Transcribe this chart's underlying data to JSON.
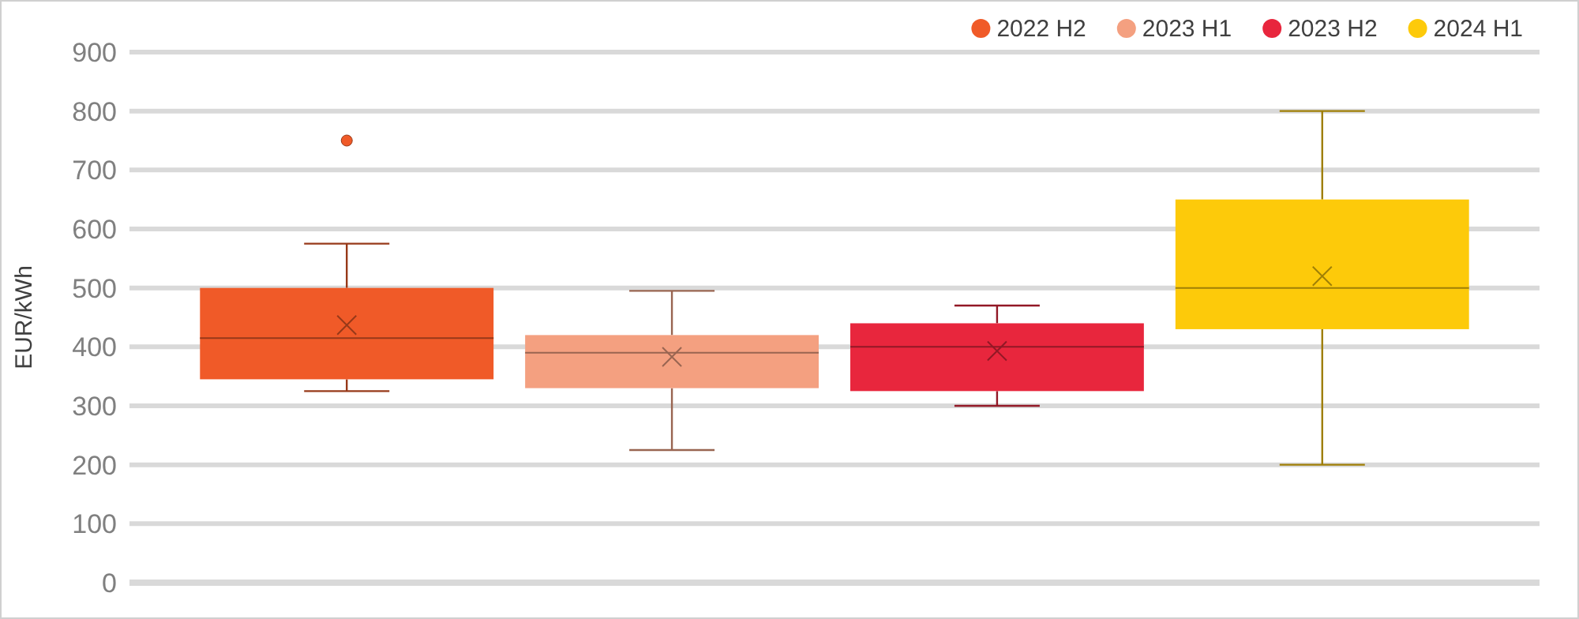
{
  "chart_data": {
    "type": "box",
    "ylabel": "EUR/kWh",
    "categories": [
      null
    ],
    "ylim": [
      0,
      900
    ],
    "yticks": [
      0,
      100,
      200,
      300,
      400,
      500,
      600,
      700,
      800,
      900
    ],
    "grid": "y",
    "legend": "top right",
    "marker": "cross",
    "series": [
      {
        "name": "2022 H2",
        "color": "#f05a28",
        "boxes": [
          {
            "low": 325,
            "q1": 345,
            "median": 415,
            "q3": 500,
            "high": 575,
            "mean": 437,
            "outliers": [
              750
            ]
          }
        ]
      },
      {
        "name": "2023 H1",
        "color": "#f4a080",
        "boxes": [
          {
            "low": 225,
            "q1": 330,
            "median": 390,
            "q3": 420,
            "high": 495,
            "mean": 383
          }
        ]
      },
      {
        "name": "2023 H2",
        "color": "#e8263d",
        "boxes": [
          {
            "low": 300,
            "q1": 325,
            "median": 400,
            "q3": 440,
            "high": 470,
            "mean": 393
          }
        ]
      },
      {
        "name": "2024 H1",
        "color": "#fdca0a",
        "boxes": [
          {
            "low": 200,
            "q1": 430,
            "median": 500,
            "q3": 650,
            "high": 800,
            "mean": 520
          }
        ]
      }
    ]
  }
}
